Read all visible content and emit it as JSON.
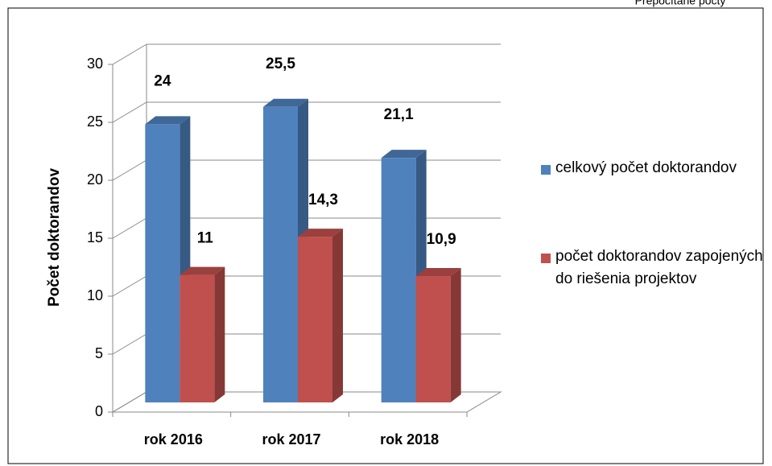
{
  "chart_data": {
    "type": "bar3d",
    "title": "Prepočítané počty",
    "ylabel": "Počet doktorandov",
    "categories": [
      "rok 2016",
      "rok 2017",
      "rok 2018"
    ],
    "series": [
      {
        "name": "celkový počet doktorandov",
        "color": "#4f81bd",
        "values": [
          24,
          25.5,
          21.1
        ],
        "value_labels": [
          "24",
          "25,5",
          "21,1"
        ]
      },
      {
        "name": "počet doktorandov zapojených do riešenia projektov",
        "color": "#c0504d",
        "values": [
          11,
          14.3,
          10.9
        ],
        "value_labels": [
          "11",
          "14,3",
          "10,9"
        ]
      }
    ],
    "ylim": [
      0,
      30
    ],
    "yticks": [
      0,
      5,
      10,
      15,
      20,
      25,
      30
    ],
    "grid": true,
    "legend": "right"
  }
}
